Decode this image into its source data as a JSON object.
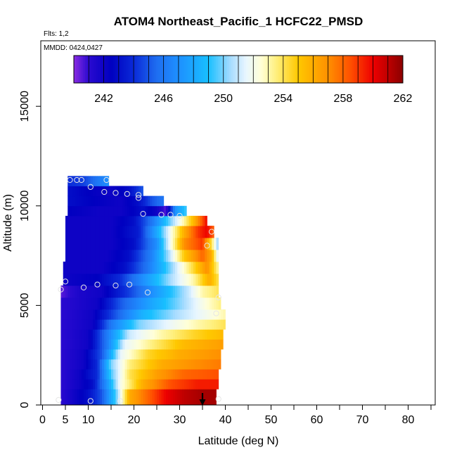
{
  "chart_data": {
    "type": "heatmap",
    "title": "ATOM4 Northeast_Pacific_1 HCFC22_PMSD",
    "flights_text": "Flts: 1,2",
    "dates_text": "MMDD: 0424,0427",
    "xlabel": "Latitude (deg N)",
    "ylabel": "Altitude (m)",
    "xlim": [
      0,
      85
    ],
    "ylim": [
      0,
      17500
    ],
    "xticks": [
      0,
      5,
      10,
      20,
      30,
      40,
      50,
      60,
      70,
      80
    ],
    "yticks": [
      0,
      5000,
      10000,
      15000
    ],
    "colorbar": {
      "min": 240,
      "max": 262,
      "ticks": [
        242,
        246,
        250,
        254,
        258,
        262
      ],
      "stops": [
        {
          "v": 240,
          "c": "#8a2be2"
        },
        {
          "v": 241,
          "c": "#2a0ad0"
        },
        {
          "v": 242.5,
          "c": "#0000c0"
        },
        {
          "v": 244,
          "c": "#0a2ad8"
        },
        {
          "v": 245.5,
          "c": "#1e6cf0"
        },
        {
          "v": 247,
          "c": "#1e90ff"
        },
        {
          "v": 249,
          "c": "#18bfff"
        },
        {
          "v": 250.5,
          "c": "#a8dcff"
        },
        {
          "v": 251.5,
          "c": "#e8f6ff"
        },
        {
          "v": 252.5,
          "c": "#ffffd8"
        },
        {
          "v": 253.5,
          "c": "#fff080"
        },
        {
          "v": 255,
          "c": "#ffc800"
        },
        {
          "v": 257,
          "c": "#ff9000"
        },
        {
          "v": 258.5,
          "c": "#ff5000"
        },
        {
          "v": 260,
          "c": "#ee0000"
        },
        {
          "v": 261.2,
          "c": "#b40000"
        },
        {
          "v": 262,
          "c": "#8b0000"
        }
      ]
    },
    "layers": [
      {
        "alt0": 0,
        "alt1": 800,
        "lat0": 4,
        "lat1": 38,
        "pts": [
          [
            4,
            241
          ],
          [
            7,
            242
          ],
          [
            10,
            243
          ],
          [
            13,
            245
          ],
          [
            16,
            249.5
          ],
          [
            19,
            256
          ],
          [
            23,
            258
          ],
          [
            27,
            260
          ],
          [
            31,
            261
          ],
          [
            35,
            261.5
          ],
          [
            38,
            261.5
          ]
        ]
      },
      {
        "alt0": 800,
        "alt1": 1300,
        "lat0": 4,
        "lat1": 38.5,
        "pts": [
          [
            4,
            241
          ],
          [
            8,
            242
          ],
          [
            11,
            243
          ],
          [
            14,
            247
          ],
          [
            17,
            252
          ],
          [
            22,
            256
          ],
          [
            28,
            258.5
          ],
          [
            34,
            259.5
          ],
          [
            38.5,
            259.5
          ]
        ]
      },
      {
        "alt0": 1300,
        "alt1": 1800,
        "lat0": 4,
        "lat1": 38.5,
        "pts": [
          [
            4,
            241
          ],
          [
            8,
            242
          ],
          [
            12,
            244
          ],
          [
            15,
            249.5
          ],
          [
            19,
            254
          ],
          [
            25,
            256.5
          ],
          [
            31,
            258
          ],
          [
            38.5,
            258.5
          ]
        ]
      },
      {
        "alt0": 1800,
        "alt1": 2300,
        "lat0": 4,
        "lat1": 39,
        "pts": [
          [
            4,
            241
          ],
          [
            9,
            242
          ],
          [
            12,
            244
          ],
          [
            15,
            250
          ],
          [
            19,
            253.5
          ],
          [
            26,
            256
          ],
          [
            33,
            257
          ],
          [
            39,
            257.5
          ]
        ]
      },
      {
        "alt0": 2300,
        "alt1": 2800,
        "lat0": 4,
        "lat1": 39,
        "pts": [
          [
            4,
            241
          ],
          [
            9,
            242
          ],
          [
            13,
            245
          ],
          [
            17,
            251.5
          ],
          [
            23,
            254.5
          ],
          [
            30,
            256
          ],
          [
            39,
            257
          ]
        ]
      },
      {
        "alt0": 2800,
        "alt1": 3300,
        "lat0": 4,
        "lat1": 39.5,
        "pts": [
          [
            4,
            241
          ],
          [
            10,
            242
          ],
          [
            14,
            246
          ],
          [
            18,
            251.5
          ],
          [
            24,
            253.5
          ],
          [
            31,
            255.5
          ],
          [
            39.5,
            256.5
          ]
        ]
      },
      {
        "alt0": 3300,
        "alt1": 3800,
        "lat0": 4,
        "lat1": 39.5,
        "pts": [
          [
            4,
            241
          ],
          [
            10,
            242
          ],
          [
            14,
            246
          ],
          [
            19,
            251
          ],
          [
            26,
            253
          ],
          [
            33,
            254.5
          ],
          [
            39.5,
            255.5
          ]
        ]
      },
      {
        "alt0": 3800,
        "alt1": 4300,
        "lat0": 4,
        "lat1": 40,
        "pts": [
          [
            4,
            241
          ],
          [
            11,
            242
          ],
          [
            15,
            246
          ],
          [
            21,
            250
          ],
          [
            27,
            251.5
          ],
          [
            34,
            253
          ],
          [
            40,
            254
          ]
        ]
      },
      {
        "alt0": 4300,
        "alt1": 4800,
        "lat0": 4,
        "lat1": 40,
        "pts": [
          [
            4,
            241
          ],
          [
            11,
            242
          ],
          [
            16,
            245
          ],
          [
            22,
            248.5
          ],
          [
            29,
            250.5
          ],
          [
            36,
            252
          ],
          [
            40,
            253
          ]
        ]
      },
      {
        "alt0": 4800,
        "alt1": 5400,
        "lat0": 4,
        "lat1": 39,
        "pts": [
          [
            4,
            241
          ],
          [
            12,
            242
          ],
          [
            17,
            245
          ],
          [
            24,
            248
          ],
          [
            31,
            250.5
          ],
          [
            36,
            252.5
          ],
          [
            39,
            253.5
          ]
        ]
      },
      {
        "alt0": 5400,
        "alt1": 6000,
        "lat0": 4,
        "lat1": 38.5,
        "pts": [
          [
            4,
            240.5
          ],
          [
            8,
            241.5
          ],
          [
            13,
            242
          ],
          [
            19,
            244.5
          ],
          [
            26,
            248
          ],
          [
            32,
            251
          ],
          [
            35,
            253
          ],
          [
            38.5,
            254
          ]
        ]
      },
      {
        "alt0": 6000,
        "alt1": 6600,
        "lat0": 4.5,
        "lat1": 38.5,
        "pts": [
          [
            4.5,
            242
          ],
          [
            12,
            242.5
          ],
          [
            17,
            244
          ],
          [
            22,
            247
          ],
          [
            28,
            250.5
          ],
          [
            33,
            253
          ],
          [
            36.5,
            256
          ],
          [
            38.5,
            254
          ]
        ]
      },
      {
        "alt0": 6600,
        "alt1": 7200,
        "lat0": 4.5,
        "lat1": 38.5,
        "pts": [
          [
            4.5,
            242
          ],
          [
            13,
            242
          ],
          [
            18,
            243
          ],
          [
            23,
            246
          ],
          [
            28,
            250
          ],
          [
            32,
            253.5
          ],
          [
            36,
            257
          ],
          [
            38.5,
            253
          ]
        ]
      },
      {
        "alt0": 7200,
        "alt1": 7800,
        "lat0": 5,
        "lat1": 38.5,
        "pts": [
          [
            5,
            242
          ],
          [
            14,
            242
          ],
          [
            19,
            243
          ],
          [
            24,
            246.5
          ],
          [
            28,
            251
          ],
          [
            31,
            255
          ],
          [
            35,
            258
          ],
          [
            37,
            256
          ],
          [
            38.5,
            251
          ]
        ]
      },
      {
        "alt0": 7800,
        "alt1": 8400,
        "lat0": 5,
        "lat1": 38.5,
        "pts": [
          [
            5,
            242
          ],
          [
            15,
            242
          ],
          [
            20,
            243
          ],
          [
            25,
            247
          ],
          [
            28,
            252
          ],
          [
            31,
            257
          ],
          [
            35,
            259
          ],
          [
            37,
            254
          ],
          [
            38.5,
            250
          ]
        ]
      },
      {
        "alt0": 8400,
        "alt1": 9000,
        "lat0": 5,
        "lat1": 37.5,
        "pts": [
          [
            5,
            242
          ],
          [
            15,
            242
          ],
          [
            21,
            243.5
          ],
          [
            25,
            248
          ],
          [
            28,
            252
          ],
          [
            31,
            256
          ],
          [
            34,
            259
          ],
          [
            36,
            260
          ],
          [
            37.5,
            258
          ]
        ]
      },
      {
        "alt0": 9000,
        "alt1": 9500,
        "lat0": 5,
        "lat1": 36,
        "pts": [
          [
            5,
            242
          ],
          [
            15,
            242
          ],
          [
            20,
            243
          ],
          [
            24,
            246
          ],
          [
            27,
            249
          ],
          [
            30,
            252
          ],
          [
            33,
            255.5
          ],
          [
            36,
            260
          ]
        ]
      },
      {
        "alt0": 9500,
        "alt1": 10000,
        "lat0": 5.5,
        "lat1": 31.5,
        "pts": [
          [
            5.5,
            242.5
          ],
          [
            12,
            242
          ],
          [
            17,
            242
          ],
          [
            22,
            243
          ],
          [
            25,
            242
          ],
          [
            27,
            240.5
          ],
          [
            29,
            247
          ],
          [
            31.5,
            249.5
          ]
        ]
      },
      {
        "alt0": 10000,
        "alt1": 10500,
        "lat0": 5.5,
        "lat1": 26.5,
        "pts": [
          [
            5.5,
            243
          ],
          [
            11,
            242.5
          ],
          [
            17,
            242
          ],
          [
            21,
            243
          ],
          [
            24,
            245
          ],
          [
            26.5,
            246
          ]
        ]
      },
      {
        "alt0": 10500,
        "alt1": 11000,
        "lat0": 5.5,
        "lat1": 22,
        "pts": [
          [
            5.5,
            243
          ],
          [
            10,
            242.5
          ],
          [
            15,
            242
          ],
          [
            19,
            243
          ],
          [
            22,
            245
          ]
        ]
      },
      {
        "alt0": 11000,
        "alt1": 11500,
        "lat0": 5.5,
        "lat1": 14.5,
        "pts": [
          [
            5.5,
            244
          ],
          [
            9,
            244.5
          ],
          [
            12,
            246
          ],
          [
            14.5,
            247
          ]
        ]
      }
    ],
    "circles": [
      [
        3.5,
        250
      ],
      [
        10.5,
        200
      ],
      [
        17,
        200
      ],
      [
        38.5,
        300
      ],
      [
        4,
        5800
      ],
      [
        5,
        6200
      ],
      [
        9,
        5900
      ],
      [
        12,
        6050
      ],
      [
        16,
        6000
      ],
      [
        19,
        6050
      ],
      [
        23,
        5650
      ],
      [
        38,
        4600
      ],
      [
        38.5,
        5400
      ],
      [
        36,
        8000
      ],
      [
        37,
        8700
      ],
      [
        22,
        9600
      ],
      [
        26,
        9550
      ],
      [
        28,
        9550
      ],
      [
        30,
        9500
      ],
      [
        13.5,
        10700
      ],
      [
        16,
        10650
      ],
      [
        18.5,
        10600
      ],
      [
        21,
        10550
      ],
      [
        21,
        10400
      ],
      [
        10.5,
        10950
      ],
      [
        6,
        11300
      ],
      [
        7.5,
        11300
      ],
      [
        8.5,
        11300
      ],
      [
        14,
        11300
      ]
    ],
    "arrow": {
      "lat": 35,
      "alt_top": 600,
      "alt_bottom": 0
    }
  }
}
